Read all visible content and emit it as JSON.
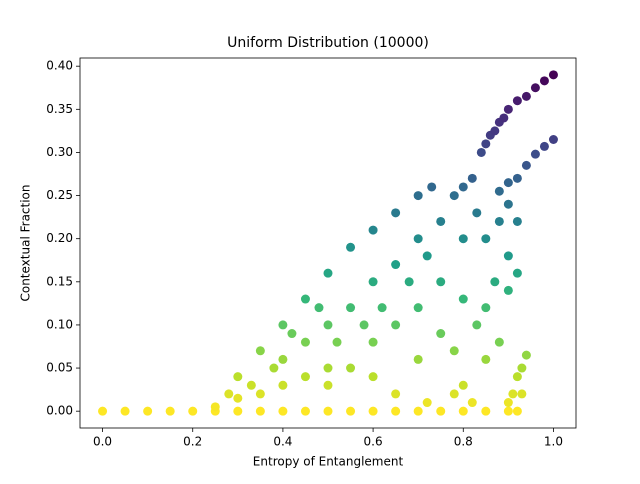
{
  "chart_data": {
    "type": "scatter",
    "title": "Uniform Distribution (10000)",
    "xlabel": "Entropy of Entanglement",
    "ylabel": "Contextual Fraction",
    "colormap": "viridis_r",
    "xlim": [
      -0.05,
      1.05
    ],
    "ylim": [
      -0.0195,
      0.4095
    ],
    "xticks": [
      {
        "value": 0,
        "label": "0.0"
      },
      {
        "value": 0.2,
        "label": "0.2"
      },
      {
        "value": 0.4,
        "label": "0.4"
      },
      {
        "value": 0.6,
        "label": "0.6"
      },
      {
        "value": 0.8,
        "label": "0.8"
      },
      {
        "value": 1,
        "label": "1.0"
      }
    ],
    "yticks": [
      {
        "value": 0,
        "label": "0.00"
      },
      {
        "value": 0.05,
        "label": "0.05"
      },
      {
        "value": 0.1,
        "label": "0.10"
      },
      {
        "value": 0.15,
        "label": "0.15"
      },
      {
        "value": 0.2,
        "label": "0.20"
      },
      {
        "value": 0.25,
        "label": "0.25"
      },
      {
        "value": 0.3,
        "label": "0.30"
      },
      {
        "value": 0.35,
        "label": "0.35"
      },
      {
        "value": 0.4,
        "label": "0.40"
      }
    ],
    "x": [
      0,
      0.05,
      0.1,
      0.15,
      0.2,
      0.25,
      0.3,
      0.35,
      0.4,
      0.45,
      0.5,
      0.55,
      0.6,
      0.65,
      0.7,
      0.75,
      0.8,
      0.85,
      0.9,
      0.92,
      0.86,
      0.88,
      0.9,
      0.92,
      0.94,
      0.96,
      0.98,
      1.0,
      0.89,
      0.87,
      0.84,
      0.85,
      0.92,
      0.94,
      0.96,
      0.98,
      1.0,
      0.9,
      0.88,
      0.3,
      0.35,
      0.4,
      0.45,
      0.5,
      0.55,
      0.6,
      0.65,
      0.7,
      0.73,
      0.78,
      0.8,
      0.82,
      0.83,
      0.45,
      0.5,
      0.55,
      0.6,
      0.65,
      0.7,
      0.75,
      0.8,
      0.85,
      0.88,
      0.9,
      0.92,
      0.9,
      0.87,
      0.85,
      0.83,
      0.8,
      0.75,
      0.7,
      0.65,
      0.6,
      0.55,
      0.5,
      0.45,
      0.4,
      0.35,
      0.3,
      0.25,
      0.4,
      0.5,
      0.6,
      0.7,
      0.75,
      0.78,
      0.8,
      0.85,
      0.88,
      0.9,
      0.92,
      0.62,
      0.68,
      0.72,
      0.58,
      0.52,
      0.48,
      0.42,
      0.38,
      0.33,
      0.28,
      0.65,
      0.72,
      0.78,
      0.82,
      0.91,
      0.92,
      0.93,
      0.94,
      0.9,
      0.93
    ],
    "values": [
      0,
      0,
      0,
      0,
      0,
      0,
      0,
      0,
      0,
      0,
      0,
      0,
      0,
      0,
      0,
      0,
      0,
      0,
      0,
      0,
      0.32,
      0.335,
      0.35,
      0.36,
      0.365,
      0.375,
      0.383,
      0.39,
      0.34,
      0.325,
      0.3,
      0.31,
      0.27,
      0.285,
      0.298,
      0.307,
      0.315,
      0.265,
      0.255,
      0.04,
      0.07,
      0.1,
      0.13,
      0.16,
      0.19,
      0.21,
      0.23,
      0.25,
      0.26,
      0.25,
      0.26,
      0.27,
      0.23,
      0.08,
      0.1,
      0.12,
      0.15,
      0.17,
      0.2,
      0.22,
      0.2,
      0.2,
      0.22,
      0.24,
      0.22,
      0.18,
      0.15,
      0.12,
      0.1,
      0.13,
      0.15,
      0.12,
      0.1,
      0.08,
      0.05,
      0.05,
      0.04,
      0.03,
      0.02,
      0.015,
      0.005,
      0.06,
      0.03,
      0.04,
      0.06,
      0.09,
      0.07,
      0.03,
      0.06,
      0.08,
      0.14,
      0.16,
      0.12,
      0.15,
      0.18,
      0.1,
      0.08,
      0.12,
      0.09,
      0.05,
      0.03,
      0.02,
      0.02,
      0.01,
      0.02,
      0.01,
      0.02,
      0.04,
      0.05,
      0.065,
      0.01,
      0.02
    ]
  }
}
